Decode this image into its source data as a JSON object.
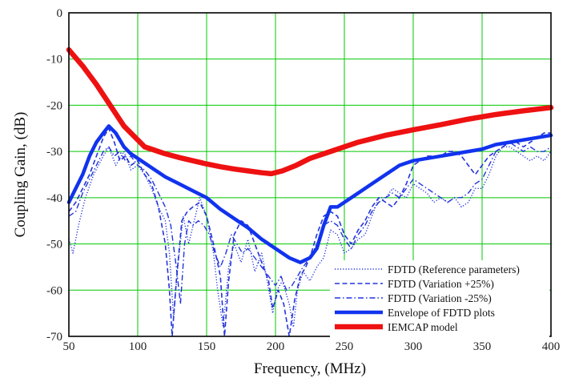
{
  "chart_data": {
    "type": "line",
    "xlabel": "Frequency, (MHz)",
    "ylabel": "Coupling Gain, (dB)",
    "xlim": [
      50,
      400
    ],
    "ylim": [
      -70,
      0
    ],
    "x_ticks": [
      "50",
      "100",
      "150",
      "200",
      "250",
      "300",
      "350",
      "400"
    ],
    "y_ticks": [
      "0",
      "-10",
      "-20",
      "-30",
      "-40",
      "-50",
      "-60",
      "-70"
    ],
    "grid": true,
    "grid_color": "#00c800",
    "legend_position": "bottom-right",
    "series": [
      {
        "name": "FDTD (Reference parameters)",
        "color": "#2233dd",
        "style": "dotted",
        "points": [
          [
            50,
            -49
          ],
          [
            53,
            -52
          ],
          [
            57,
            -46
          ],
          [
            62,
            -40
          ],
          [
            68,
            -35
          ],
          [
            75,
            -31
          ],
          [
            79,
            -29
          ],
          [
            84,
            -33
          ],
          [
            90,
            -30
          ],
          [
            95,
            -34
          ],
          [
            100,
            -33
          ],
          [
            105,
            -35
          ],
          [
            110,
            -38
          ],
          [
            115,
            -42
          ],
          [
            120,
            -45
          ],
          [
            123,
            -52
          ],
          [
            126,
            -66
          ],
          [
            129,
            -55
          ],
          [
            133,
            -44
          ],
          [
            137,
            -50
          ],
          [
            141,
            -45
          ],
          [
            145,
            -40
          ],
          [
            150,
            -44
          ],
          [
            155,
            -52
          ],
          [
            158,
            -60
          ],
          [
            162,
            -68
          ],
          [
            166,
            -55
          ],
          [
            170,
            -50
          ],
          [
            175,
            -54
          ],
          [
            180,
            -49
          ],
          [
            185,
            -56
          ],
          [
            190,
            -52
          ],
          [
            194,
            -58
          ],
          [
            198,
            -65
          ],
          [
            201,
            -60
          ],
          [
            205,
            -58
          ],
          [
            210,
            -63
          ],
          [
            213,
            -68
          ],
          [
            216,
            -60
          ],
          [
            220,
            -56
          ],
          [
            225,
            -58
          ],
          [
            230,
            -55
          ],
          [
            235,
            -53
          ],
          [
            240,
            -47
          ],
          [
            245,
            -48
          ],
          [
            250,
            -52
          ],
          [
            255,
            -51
          ],
          [
            260,
            -49
          ],
          [
            265,
            -48
          ],
          [
            270,
            -44
          ],
          [
            275,
            -40
          ],
          [
            280,
            -40
          ],
          [
            285,
            -38
          ],
          [
            290,
            -39
          ],
          [
            295,
            -40
          ],
          [
            300,
            -37
          ],
          [
            305,
            -38
          ],
          [
            310,
            -39
          ],
          [
            315,
            -41
          ],
          [
            320,
            -40
          ],
          [
            325,
            -41
          ],
          [
            330,
            -40
          ],
          [
            335,
            -42
          ],
          [
            340,
            -41
          ],
          [
            345,
            -38
          ],
          [
            350,
            -38
          ],
          [
            355,
            -35
          ],
          [
            360,
            -31
          ],
          [
            365,
            -29
          ],
          [
            370,
            -29
          ],
          [
            375,
            -30
          ],
          [
            380,
            -31
          ],
          [
            385,
            -32
          ],
          [
            390,
            -31
          ],
          [
            395,
            -32
          ],
          [
            400,
            -30
          ]
        ]
      },
      {
        "name": "FDTD (Variation +25%)",
        "color": "#2233dd",
        "style": "dashed",
        "points": [
          [
            50,
            -43
          ],
          [
            55,
            -41
          ],
          [
            60,
            -38
          ],
          [
            65,
            -35
          ],
          [
            70,
            -31
          ],
          [
            75,
            -27
          ],
          [
            79,
            -25
          ],
          [
            83,
            -28
          ],
          [
            87,
            -32
          ],
          [
            91,
            -31
          ],
          [
            95,
            -33
          ],
          [
            100,
            -32
          ],
          [
            105,
            -35
          ],
          [
            110,
            -37
          ],
          [
            115,
            -42
          ],
          [
            120,
            -50
          ],
          [
            123,
            -60
          ],
          [
            125,
            -70
          ],
          [
            128,
            -58
          ],
          [
            132,
            -45
          ],
          [
            136,
            -43
          ],
          [
            140,
            -42
          ],
          [
            145,
            -41
          ],
          [
            150,
            -44
          ],
          [
            155,
            -50
          ],
          [
            160,
            -57
          ],
          [
            163,
            -70
          ],
          [
            166,
            -58
          ],
          [
            170,
            -48
          ],
          [
            175,
            -45
          ],
          [
            180,
            -46
          ],
          [
            185,
            -50
          ],
          [
            190,
            -54
          ],
          [
            195,
            -58
          ],
          [
            198,
            -64
          ],
          [
            202,
            -60
          ],
          [
            206,
            -63
          ],
          [
            210,
            -70
          ],
          [
            214,
            -62
          ],
          [
            218,
            -57
          ],
          [
            222,
            -55
          ],
          [
            226,
            -52
          ],
          [
            230,
            -48
          ],
          [
            235,
            -44
          ],
          [
            240,
            -43
          ],
          [
            245,
            -44
          ],
          [
            250,
            -48
          ],
          [
            255,
            -50
          ],
          [
            260,
            -47
          ],
          [
            265,
            -45
          ],
          [
            270,
            -42
          ],
          [
            275,
            -40
          ],
          [
            280,
            -41
          ],
          [
            285,
            -42
          ],
          [
            290,
            -40
          ],
          [
            295,
            -37
          ],
          [
            300,
            -33
          ],
          [
            305,
            -32
          ],
          [
            310,
            -31
          ],
          [
            315,
            -31
          ],
          [
            320,
            -31
          ],
          [
            325,
            -30
          ],
          [
            330,
            -30
          ],
          [
            335,
            -31
          ],
          [
            340,
            -33
          ],
          [
            345,
            -35
          ],
          [
            350,
            -33
          ],
          [
            355,
            -31
          ],
          [
            360,
            -30
          ],
          [
            365,
            -29
          ],
          [
            370,
            -28
          ],
          [
            375,
            -28
          ],
          [
            380,
            -29
          ],
          [
            385,
            -28
          ],
          [
            390,
            -27
          ],
          [
            395,
            -26
          ],
          [
            400,
            -26
          ]
        ]
      },
      {
        "name": "FDTD (Variation -25%)",
        "color": "#2233dd",
        "style": "dashdot",
        "points": [
          [
            50,
            -44
          ],
          [
            55,
            -43
          ],
          [
            60,
            -39
          ],
          [
            65,
            -36
          ],
          [
            70,
            -33
          ],
          [
            75,
            -30
          ],
          [
            79,
            -29
          ],
          [
            83,
            -31
          ],
          [
            87,
            -30
          ],
          [
            91,
            -32
          ],
          [
            95,
            -31
          ],
          [
            100,
            -33
          ],
          [
            105,
            -34
          ],
          [
            110,
            -36
          ],
          [
            115,
            -39
          ],
          [
            120,
            -42
          ],
          [
            124,
            -46
          ],
          [
            128,
            -55
          ],
          [
            131,
            -63
          ],
          [
            134,
            -50
          ],
          [
            137,
            -45
          ],
          [
            140,
            -46
          ],
          [
            144,
            -45
          ],
          [
            148,
            -46
          ],
          [
            152,
            -48
          ],
          [
            156,
            -52
          ],
          [
            160,
            -55
          ],
          [
            164,
            -52
          ],
          [
            168,
            -48
          ],
          [
            172,
            -50
          ],
          [
            176,
            -52
          ],
          [
            180,
            -51
          ],
          [
            185,
            -53
          ],
          [
            190,
            -55
          ],
          [
            195,
            -57
          ],
          [
            200,
            -59
          ],
          [
            204,
            -57
          ],
          [
            208,
            -60
          ],
          [
            212,
            -59
          ],
          [
            216,
            -57
          ],
          [
            220,
            -55
          ],
          [
            225,
            -53
          ],
          [
            230,
            -50
          ],
          [
            235,
            -46
          ],
          [
            240,
            -45
          ],
          [
            245,
            -46
          ],
          [
            250,
            -49
          ],
          [
            255,
            -51
          ],
          [
            260,
            -48
          ],
          [
            265,
            -46
          ],
          [
            270,
            -43
          ],
          [
            275,
            -41
          ],
          [
            280,
            -40
          ],
          [
            285,
            -39
          ],
          [
            290,
            -40
          ],
          [
            295,
            -38
          ],
          [
            300,
            -36
          ],
          [
            305,
            -37
          ],
          [
            310,
            -38
          ],
          [
            315,
            -39
          ],
          [
            320,
            -40
          ],
          [
            325,
            -41
          ],
          [
            330,
            -40
          ],
          [
            335,
            -40
          ],
          [
            340,
            -39
          ],
          [
            345,
            -37
          ],
          [
            350,
            -36
          ],
          [
            355,
            -33
          ],
          [
            360,
            -30
          ],
          [
            365,
            -29
          ],
          [
            370,
            -28
          ],
          [
            375,
            -29
          ],
          [
            380,
            -30
          ],
          [
            385,
            -29
          ],
          [
            390,
            -30
          ],
          [
            395,
            -30
          ],
          [
            400,
            -29
          ]
        ]
      },
      {
        "name": "Envelope of FDTD plots",
        "color": "#1133ee",
        "style": "solid-thick",
        "points": [
          [
            50,
            -41
          ],
          [
            55,
            -38
          ],
          [
            60,
            -35
          ],
          [
            65,
            -31
          ],
          [
            70,
            -28
          ],
          [
            75,
            -26
          ],
          [
            79,
            -24.5
          ],
          [
            84,
            -26
          ],
          [
            90,
            -29
          ],
          [
            95,
            -30.5
          ],
          [
            100,
            -31.5
          ],
          [
            110,
            -33.5
          ],
          [
            120,
            -35.5
          ],
          [
            130,
            -37
          ],
          [
            140,
            -38.5
          ],
          [
            150,
            -40
          ],
          [
            160,
            -42.5
          ],
          [
            170,
            -44.5
          ],
          [
            180,
            -46.5
          ],
          [
            190,
            -49
          ],
          [
            200,
            -51
          ],
          [
            210,
            -53
          ],
          [
            218,
            -54
          ],
          [
            225,
            -53
          ],
          [
            230,
            -51
          ],
          [
            235,
            -46
          ],
          [
            240,
            -42
          ],
          [
            245,
            -42
          ],
          [
            250,
            -41
          ],
          [
            260,
            -39
          ],
          [
            270,
            -37
          ],
          [
            280,
            -35
          ],
          [
            290,
            -33
          ],
          [
            300,
            -32
          ],
          [
            310,
            -31.5
          ],
          [
            320,
            -31
          ],
          [
            330,
            -30.5
          ],
          [
            340,
            -30
          ],
          [
            350,
            -29.5
          ],
          [
            360,
            -28.5
          ],
          [
            370,
            -28
          ],
          [
            380,
            -27.5
          ],
          [
            390,
            -27
          ],
          [
            400,
            -26.5
          ]
        ]
      },
      {
        "name": "IEMCAP model",
        "color": "#ee1111",
        "style": "solid-thicker",
        "points": [
          [
            50,
            -8
          ],
          [
            60,
            -11.5
          ],
          [
            70,
            -15.5
          ],
          [
            80,
            -20
          ],
          [
            90,
            -24.5
          ],
          [
            100,
            -27.5
          ],
          [
            105,
            -29
          ],
          [
            110,
            -29.5
          ],
          [
            120,
            -30.5
          ],
          [
            130,
            -31.3
          ],
          [
            140,
            -32
          ],
          [
            150,
            -32.7
          ],
          [
            160,
            -33.3
          ],
          [
            170,
            -33.8
          ],
          [
            180,
            -34.2
          ],
          [
            190,
            -34.6
          ],
          [
            197,
            -34.8
          ],
          [
            205,
            -34.2
          ],
          [
            215,
            -33
          ],
          [
            225,
            -31.5
          ],
          [
            240,
            -30
          ],
          [
            260,
            -28
          ],
          [
            280,
            -26.5
          ],
          [
            300,
            -25.3
          ],
          [
            320,
            -24.2
          ],
          [
            340,
            -23
          ],
          [
            360,
            -22
          ],
          [
            380,
            -21.2
          ],
          [
            400,
            -20.5
          ]
        ]
      }
    ]
  }
}
